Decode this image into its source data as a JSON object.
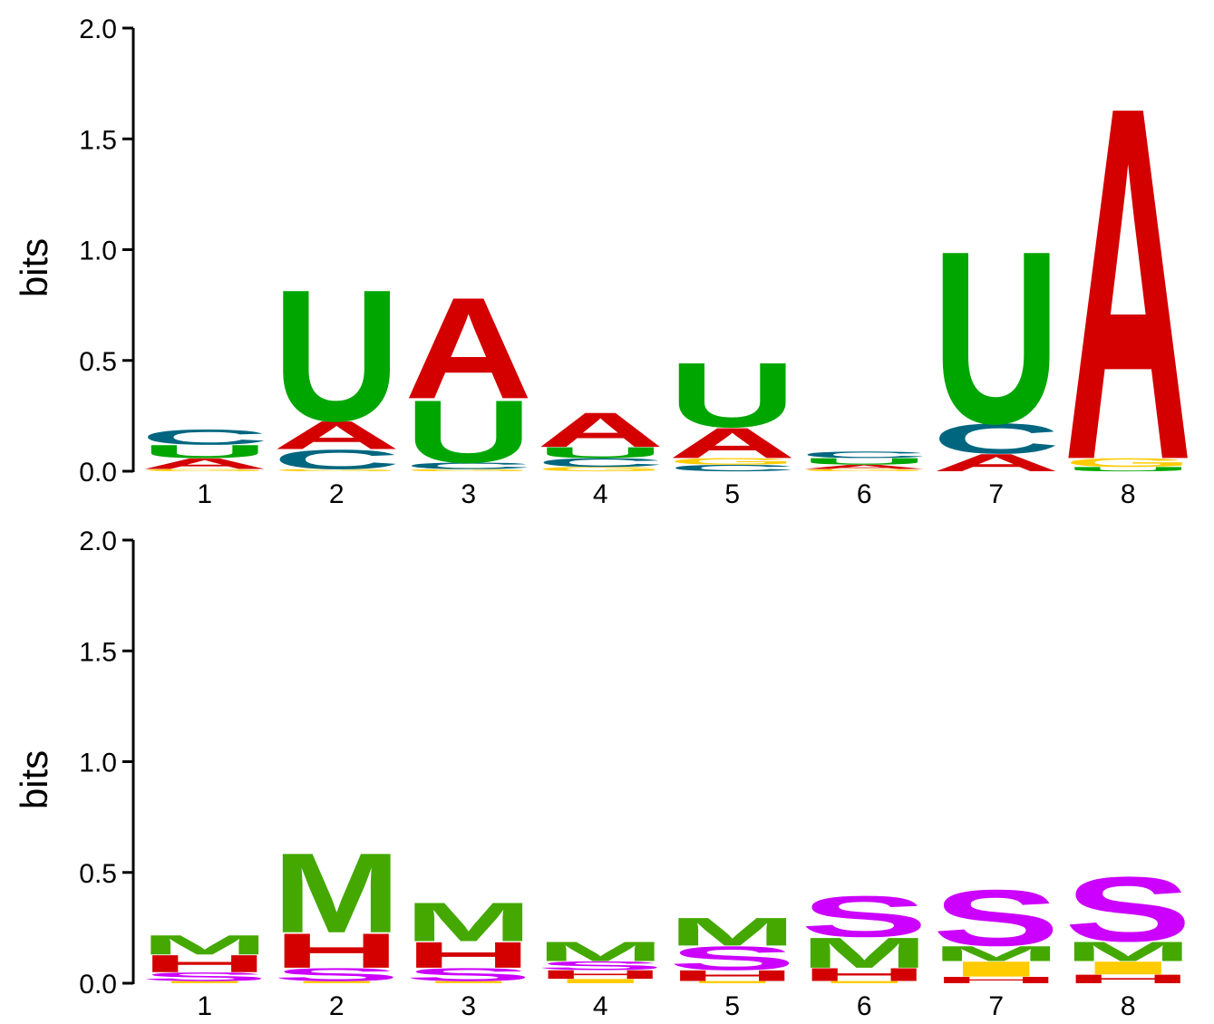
{
  "colors": {
    "A": "#d40000",
    "U": "#00a600",
    "C": "#006680",
    "G": "#ffcc00",
    "M": "#44a800",
    "S": "#cc00ff",
    "H": "#d40000",
    "I": "#ffcc00"
  },
  "chart_data": [
    {
      "type": "sequence-logo",
      "ylabel": "bits",
      "ylim": [
        0,
        2.0
      ],
      "yticks": [
        "0.0",
        "0.5",
        "1.0",
        "1.5",
        "2.0"
      ],
      "ytick_values": [
        0,
        0.5,
        1.0,
        1.5,
        2.0
      ],
      "positions": [
        "1",
        "2",
        "3",
        "4",
        "5",
        "6",
        "7",
        "8"
      ],
      "stacks": [
        [
          {
            "letter": "G",
            "h": 0.01
          },
          {
            "letter": "A",
            "h": 0.05
          },
          {
            "letter": "U",
            "h": 0.06
          },
          {
            "letter": "C",
            "h": 0.07
          }
        ],
        [
          {
            "letter": "G",
            "h": 0.01
          },
          {
            "letter": "C",
            "h": 0.09
          },
          {
            "letter": "A",
            "h": 0.13
          },
          {
            "letter": "U",
            "h": 0.61
          }
        ],
        [
          {
            "letter": "G",
            "h": 0.01
          },
          {
            "letter": "C",
            "h": 0.03
          },
          {
            "letter": "U",
            "h": 0.29
          },
          {
            "letter": "A",
            "h": 0.47
          }
        ],
        [
          {
            "letter": "G",
            "h": 0.02
          },
          {
            "letter": "C",
            "h": 0.04
          },
          {
            "letter": "U",
            "h": 0.05
          },
          {
            "letter": "A",
            "h": 0.16
          }
        ],
        [
          {
            "letter": "C",
            "h": 0.03
          },
          {
            "letter": "G",
            "h": 0.03
          },
          {
            "letter": "A",
            "h": 0.14
          },
          {
            "letter": "U",
            "h": 0.3
          }
        ],
        [
          {
            "letter": "G",
            "h": 0.01
          },
          {
            "letter": "A",
            "h": 0.02
          },
          {
            "letter": "U",
            "h": 0.03
          },
          {
            "letter": "C",
            "h": 0.03
          }
        ],
        [
          {
            "letter": "A",
            "h": 0.08
          },
          {
            "letter": "C",
            "h": 0.14
          },
          {
            "letter": "U",
            "h": 0.8
          }
        ],
        [
          {
            "letter": "U",
            "h": 0.02
          },
          {
            "letter": "G",
            "h": 0.04
          },
          {
            "letter": "A",
            "h": 1.64
          }
        ]
      ]
    },
    {
      "type": "sequence-logo",
      "ylabel": "bits",
      "ylim": [
        0,
        2.0
      ],
      "yticks": [
        "0.0",
        "0.5",
        "1.0",
        "1.5",
        "2.0"
      ],
      "ytick_values": [
        0,
        0.5,
        1.0,
        1.5,
        2.0
      ],
      "positions": [
        "1",
        "2",
        "3",
        "4",
        "5",
        "6",
        "7",
        "8"
      ],
      "stacks": [
        [
          {
            "letter": "I",
            "h": 0.01
          },
          {
            "letter": "S",
            "h": 0.04
          },
          {
            "letter": "H",
            "h": 0.08
          },
          {
            "letter": "M",
            "h": 0.09
          }
        ],
        [
          {
            "letter": "I",
            "h": 0.01
          },
          {
            "letter": "S",
            "h": 0.06
          },
          {
            "letter": "H",
            "h": 0.16
          },
          {
            "letter": "M",
            "h": 0.37
          }
        ],
        [
          {
            "letter": "I",
            "h": 0.01
          },
          {
            "letter": "S",
            "h": 0.06
          },
          {
            "letter": "H",
            "h": 0.12
          },
          {
            "letter": "M",
            "h": 0.18
          }
        ],
        [
          {
            "letter": "I",
            "h": 0.02
          },
          {
            "letter": "H",
            "h": 0.04
          },
          {
            "letter": "S",
            "h": 0.04
          },
          {
            "letter": "M",
            "h": 0.09
          }
        ],
        [
          {
            "letter": "I",
            "h": 0.01
          },
          {
            "letter": "H",
            "h": 0.05
          },
          {
            "letter": "S",
            "h": 0.11
          },
          {
            "letter": "M",
            "h": 0.13
          }
        ],
        [
          {
            "letter": "I",
            "h": 0.01
          },
          {
            "letter": "H",
            "h": 0.06
          },
          {
            "letter": "M",
            "h": 0.14
          },
          {
            "letter": "S",
            "h": 0.19
          }
        ],
        [
          {
            "letter": "H",
            "h": 0.03
          },
          {
            "letter": "I",
            "h": 0.07
          },
          {
            "letter": "M",
            "h": 0.07
          },
          {
            "letter": "S",
            "h": 0.26
          }
        ],
        [
          {
            "letter": "H",
            "h": 0.04
          },
          {
            "letter": "I",
            "h": 0.06
          },
          {
            "letter": "M",
            "h": 0.09
          },
          {
            "letter": "S",
            "h": 0.3
          }
        ]
      ]
    }
  ]
}
